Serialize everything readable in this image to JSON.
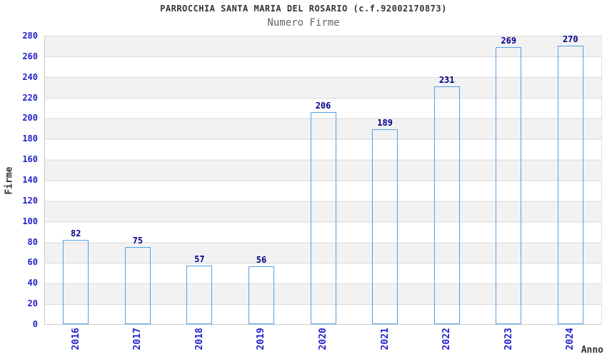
{
  "header": {
    "title": "PARROCCHIA SANTA MARIA DEL ROSARIO (c.f.92002170873)",
    "subtitle": "Numero Firme"
  },
  "chart_data": {
    "type": "bar",
    "title": "PARROCCHIA SANTA MARIA DEL ROSARIO (c.f.92002170873)",
    "subtitle": "Numero Firme",
    "categories": [
      "2016",
      "2017",
      "2018",
      "2019",
      "2020",
      "2021",
      "2022",
      "2023",
      "2024"
    ],
    "values": [
      82,
      75,
      57,
      56,
      206,
      189,
      231,
      269,
      270
    ],
    "xlabel": "Anno",
    "ylabel": "Firme",
    "ylim": [
      0,
      280
    ],
    "ytick_step": 20,
    "yticks": [
      0,
      20,
      40,
      60,
      80,
      100,
      120,
      140,
      160,
      180,
      200,
      220,
      240,
      260,
      280
    ],
    "grid": true,
    "legend": false,
    "band_fill": "alternating horizontal bands, grey on 260-280, 220-240, 180-200, 140-160, 100-120, 60-80, 20-40",
    "colors": {
      "bar_edge": "#52a0ea",
      "bar_dark": "#15156b",
      "bar_light": "#a9b4e0",
      "axis_tick_label": "#2222cc",
      "value_label": "#00008b",
      "title_text": "#333333",
      "subtitle_text": "#666666",
      "band_grey": "#f2f2f2",
      "gridline": "#d9d9d9"
    }
  }
}
